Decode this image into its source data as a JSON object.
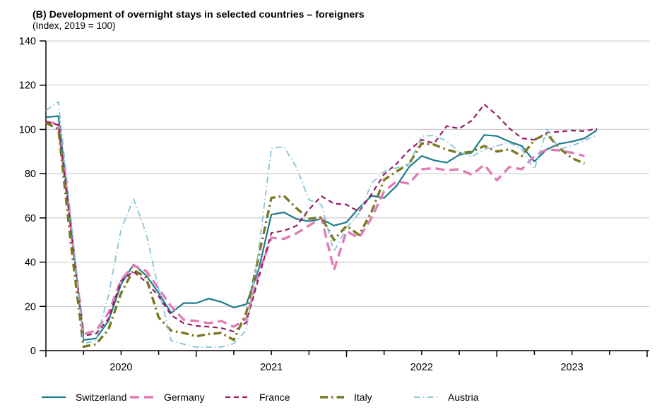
{
  "header": {
    "title": "(B) Development of overnight stays in selected countries – foreigners",
    "subtitle": "(Index, 2019 = 100)"
  },
  "chart_data": {
    "type": "line",
    "title": "(B) Development of overnight stays in selected countries – foreigners",
    "subtitle": "(Index, 2019 = 100)",
    "x_unit": "month",
    "x_start": "2020-01",
    "x_end": "2023-09",
    "x_year_labels": [
      "2020",
      "2021",
      "2022",
      "2023"
    ],
    "x_axis_months_span": 48,
    "y_axis": {
      "min": 0,
      "max": 140,
      "step": 20,
      "grid": true
    },
    "colors": {
      "switzerland": "#1f7a8e",
      "germany": "#e07cb5",
      "france": "#97195f",
      "italy": "#7a7820",
      "austria": "#84c3d9",
      "grid": "#c9c9c9",
      "axis": "#000000"
    },
    "series": [
      {
        "name": "Switzerland",
        "color": "#1f7a8e",
        "style": "solid",
        "width": 2.2,
        "values": [
          105.5,
          106,
          57,
          4.8,
          5.5,
          13.5,
          30,
          39,
          34,
          26,
          17,
          21.5,
          21.5,
          23.5,
          22,
          19.5,
          21,
          37,
          61.5,
          62.5,
          59.5,
          58.5,
          59.5,
          56.5,
          58,
          64.5,
          70,
          69,
          74.5,
          83,
          88,
          86,
          85,
          88.5,
          89.5,
          97.5,
          97,
          94.5,
          92.5,
          85.5,
          91,
          93.5,
          94.5,
          96,
          99.7
        ]
      },
      {
        "name": "Germany",
        "color": "#e07cb5",
        "style": "long-dash",
        "width": 3.4,
        "values": [
          103.5,
          102.5,
          55,
          7.5,
          9,
          17,
          32,
          38.5,
          36,
          28,
          20,
          14,
          13.4,
          12.4,
          13.4,
          10.8,
          14.4,
          35,
          51,
          50.5,
          53,
          56.5,
          60,
          36.5,
          54,
          51,
          60,
          72,
          76.5,
          75.5,
          82,
          82.5,
          81.5,
          82,
          79.5,
          84,
          77,
          83,
          82,
          88,
          91,
          90.5,
          89.5,
          88
        ]
      },
      {
        "name": "France",
        "color": "#97195f",
        "style": "dash",
        "width": 2.2,
        "values": [
          103.5,
          102,
          55,
          6.7,
          7.7,
          14.4,
          31.6,
          35.7,
          31,
          24.6,
          16,
          12.4,
          11.2,
          10.8,
          10.2,
          8.6,
          12.8,
          33.2,
          53.2,
          54.2,
          56.4,
          63.8,
          69.8,
          66.5,
          66,
          62.8,
          70.8,
          79.7,
          84.5,
          90.6,
          95.3,
          93.7,
          101.5,
          100.4,
          104,
          111.3,
          106.5,
          100.5,
          96,
          95.3,
          98.5,
          99,
          99.5,
          99.2,
          100.4
        ]
      },
      {
        "name": "Italy",
        "color": "#7a7820",
        "style": "dash-dot-thick",
        "width": 3.4,
        "values": [
          103,
          100,
          48,
          1.8,
          2.9,
          9.6,
          26,
          36.5,
          33,
          15,
          9,
          8,
          6.5,
          7.5,
          8,
          4.8,
          17.2,
          43,
          69,
          70,
          64.4,
          59.6,
          60.3,
          50,
          56.4,
          52.3,
          62.8,
          77.2,
          81,
          84.5,
          93.7,
          93.1,
          90.9,
          89.3,
          89.9,
          92.5,
          90,
          91,
          88,
          95.3,
          98,
          91.5,
          87,
          84.5
        ]
      },
      {
        "name": "Austria",
        "color": "#84c3d9",
        "style": "dash-dot-thin",
        "width": 1.8,
        "values": [
          108.5,
          112.5,
          60,
          3.2,
          4.5,
          25,
          54.8,
          68.6,
          53.2,
          27.7,
          4.5,
          2.9,
          1.6,
          1.6,
          1.6,
          3.2,
          9.2,
          46,
          91.5,
          92.1,
          82.9,
          68.2,
          66,
          44.7,
          55.5,
          62,
          75.6,
          81,
          82.6,
          84.2,
          96.9,
          97.3,
          94.7,
          89.9,
          87.7,
          91,
          92.5,
          94,
          91,
          82,
          100,
          91,
          92.5,
          95,
          97.5
        ]
      }
    ],
    "y_tick_labels": [
      "0",
      "20",
      "40",
      "60",
      "80",
      "100",
      "120",
      "140"
    ],
    "legend_position": "bottom"
  },
  "legend": {
    "items": [
      "Switzerland",
      "Germany",
      "France",
      "Italy",
      "Austria"
    ]
  }
}
